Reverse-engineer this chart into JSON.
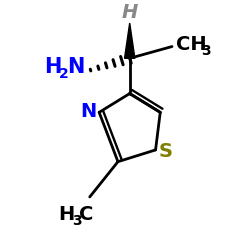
{
  "bg_color": "#ffffff",
  "black": "#000000",
  "blue": "#0000ff",
  "gray": "#888888",
  "sulfur_color": "#808000",
  "figsize": [
    2.5,
    2.5
  ],
  "dpi": 100,
  "xlim": [
    0,
    10
  ],
  "ylim": [
    0,
    10
  ]
}
